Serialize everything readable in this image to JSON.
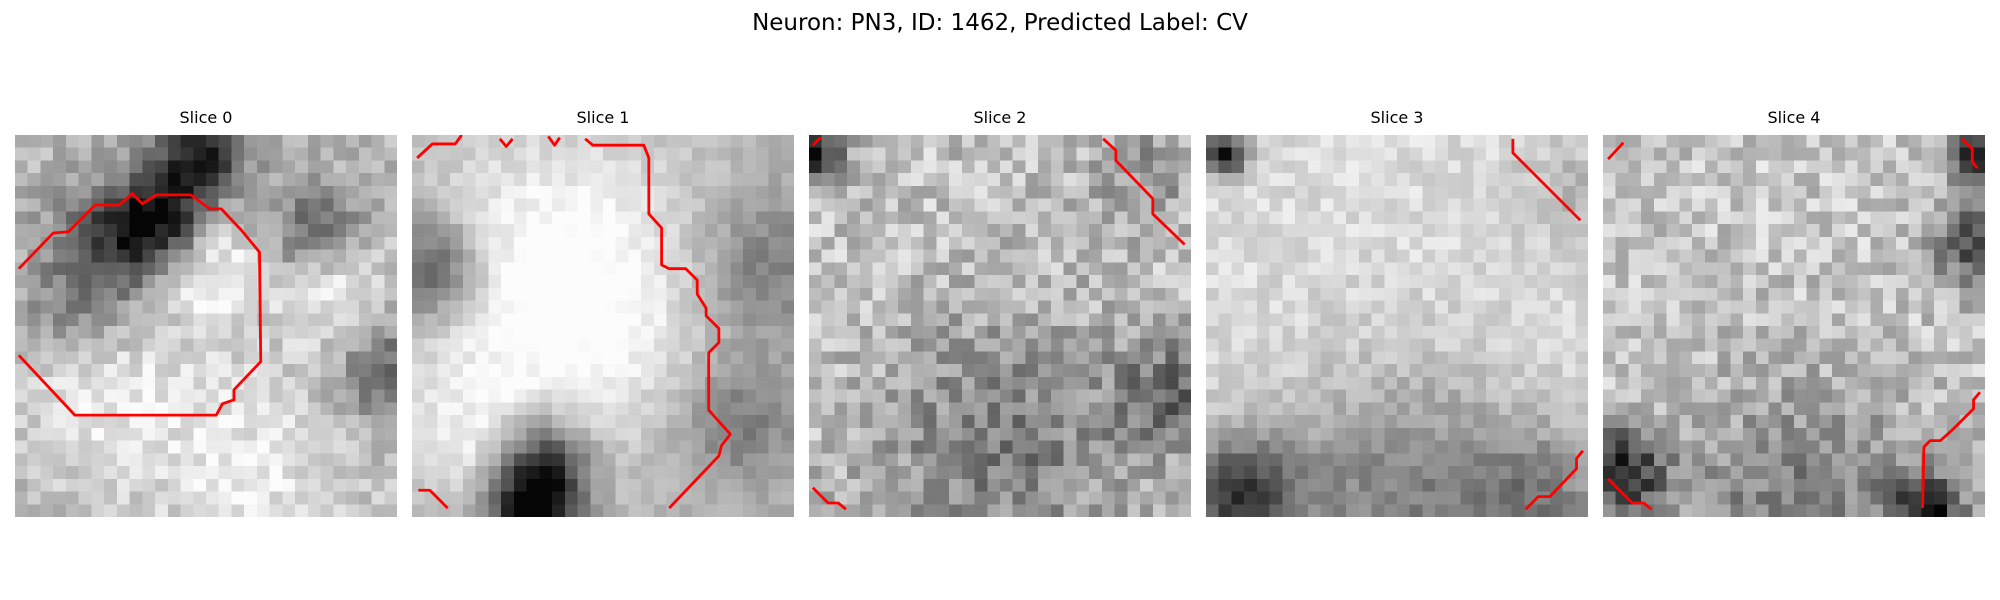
{
  "title": "Neuron: PN3, ID: 1462, Predicted Label: CV",
  "contour_color": "#ff0000",
  "colormap": "gray",
  "slices": [
    {
      "label": "Slice 0",
      "icon": "grayscale-patch"
    },
    {
      "label": "Slice 1",
      "icon": "grayscale-patch"
    },
    {
      "label": "Slice 2",
      "icon": "grayscale-patch"
    },
    {
      "label": "Slice 3",
      "icon": "grayscale-patch"
    },
    {
      "label": "Slice 4",
      "icon": "grayscale-patch"
    }
  ]
}
